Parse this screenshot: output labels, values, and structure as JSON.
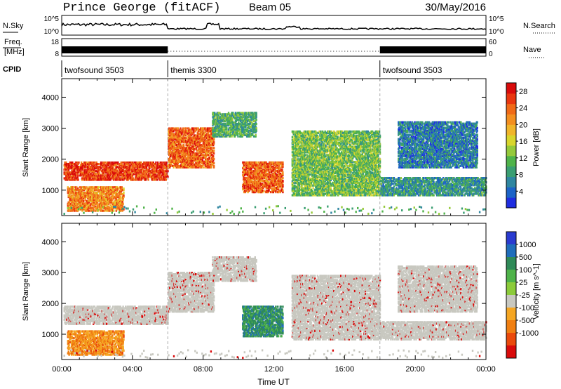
{
  "header": {
    "station": "Prince George (fitACF)",
    "beam": "Beam 05",
    "date": "30/May/2016"
  },
  "strips": {
    "nsky": {
      "label": "N.Sky",
      "right_label": "N.Search",
      "ticks_left": [
        "10^5",
        "10^0"
      ],
      "ticks_right": [
        "10^5",
        "10^0"
      ]
    },
    "freq": {
      "label": [
        "Freq.",
        "[MHz]"
      ],
      "right_label": "Nave",
      "ticks_left": [
        "18",
        "8"
      ],
      "ticks_right": [
        "60",
        "0"
      ]
    },
    "cpid": {
      "label": "CPID",
      "modes": [
        {
          "name": "twofsound 3503",
          "start": 0,
          "end": 6
        },
        {
          "name": "themis 3300",
          "start": 6,
          "end": 18
        },
        {
          "name": "twofsound 3503",
          "start": 18,
          "end": 24
        }
      ]
    }
  },
  "chart_data": [
    {
      "type": "heatmap",
      "panel": "power",
      "ylabel": "Slant Range [km]",
      "yticks": [
        1000,
        2000,
        3000,
        4000
      ],
      "ylim": [
        180,
        4600
      ],
      "xlim": [
        0,
        24
      ],
      "colorbar": {
        "label": "Power [dB]",
        "ticks": [
          4,
          8,
          12,
          16,
          20,
          24,
          28
        ],
        "range": [
          0,
          30
        ],
        "colors": [
          "#1f2de0",
          "#1c63c7",
          "#2f86a0",
          "#3a9e72",
          "#4fb34a",
          "#95c93a",
          "#d8d52c",
          "#f0b52a",
          "#f38f20",
          "#f06a17",
          "#e9360f",
          "#d90b0b"
        ]
      },
      "regions": [
        {
          "t0": 0.1,
          "t1": 6.0,
          "r0": 1300,
          "r1": 1900,
          "p": 26
        },
        {
          "t0": 6.0,
          "t1": 8.6,
          "r0": 1700,
          "r1": 3000,
          "p": 24
        },
        {
          "t0": 0.3,
          "t1": 3.5,
          "r0": 300,
          "r1": 1100,
          "p": 22
        },
        {
          "t0": 8.5,
          "t1": 11.0,
          "r0": 2700,
          "r1": 3500,
          "p": 10
        },
        {
          "t0": 10.2,
          "t1": 12.5,
          "r0": 900,
          "r1": 1900,
          "p": 24
        },
        {
          "t0": 13.0,
          "t1": 18.0,
          "r0": 800,
          "r1": 2900,
          "p": 12
        },
        {
          "t0": 18.0,
          "t1": 24.0,
          "r0": 800,
          "r1": 1400,
          "p": 8
        },
        {
          "t0": 19.0,
          "t1": 23.5,
          "r0": 1700,
          "r1": 3200,
          "p": 6
        }
      ]
    },
    {
      "type": "heatmap",
      "panel": "velocity",
      "ylabel": "Slant Range [km]",
      "yticks": [
        1000,
        2000,
        3000,
        4000
      ],
      "ylim": [
        180,
        4600
      ],
      "xlim": [
        0,
        24
      ],
      "xticks": [
        "00:00",
        "04:00",
        "08:00",
        "12:00",
        "16:00",
        "20:00",
        "00:00"
      ],
      "xlabel": "Time UT",
      "colorbar": {
        "label": "Velocity [m s^-1]",
        "ticks": [
          "1000",
          "500",
          "100",
          "25",
          "-25",
          "-100",
          "-500",
          "-1000"
        ],
        "colors": [
          "#2a3bd0",
          "#1f6dbb",
          "#2f8a58",
          "#4fb34a",
          "#8ccb3a",
          "#c8c8c0",
          "#f5a623",
          "#f07f12",
          "#ea4a0c",
          "#d90b0b"
        ]
      },
      "ground_scatter_color": "#c8c8c0",
      "regions": [
        {
          "t0": 0.1,
          "t1": 6.0,
          "r0": 1300,
          "r1": 1900,
          "v": 0
        },
        {
          "t0": 6.0,
          "t1": 8.6,
          "r0": 1700,
          "r1": 3000,
          "v": 0
        },
        {
          "t0": 0.3,
          "t1": 3.5,
          "r0": 300,
          "r1": 1100,
          "v": -150
        },
        {
          "t0": 8.5,
          "t1": 11.0,
          "r0": 2700,
          "r1": 3500,
          "v": 0
        },
        {
          "t0": 10.2,
          "t1": 12.5,
          "r0": 900,
          "r1": 1900,
          "v": 300
        },
        {
          "t0": 13.0,
          "t1": 18.0,
          "r0": 800,
          "r1": 2900,
          "v": 0
        },
        {
          "t0": 18.0,
          "t1": 24.0,
          "r0": 800,
          "r1": 1400,
          "v": 0
        },
        {
          "t0": 19.0,
          "t1": 23.5,
          "r0": 1700,
          "r1": 3200,
          "v": 0
        }
      ]
    }
  ]
}
